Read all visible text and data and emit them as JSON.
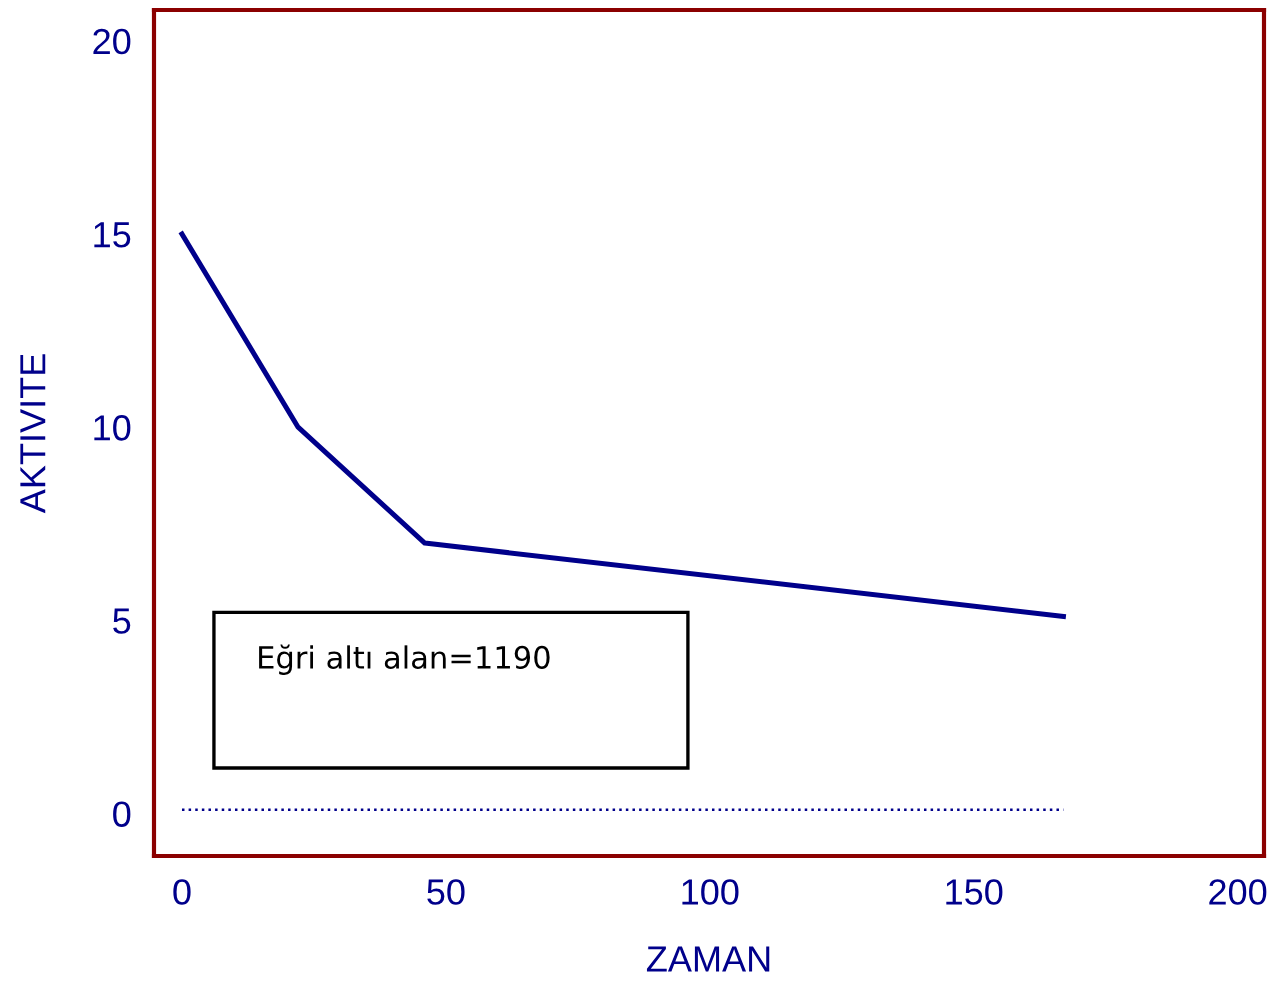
{
  "chart_data": {
    "type": "line",
    "xlabel": "ZAMAN",
    "ylabel": "AKTIVITE",
    "xlim": [
      -5.3,
      205
    ],
    "xticks": [
      0,
      50,
      100,
      150,
      200
    ],
    "ylim": [
      -1.1,
      20.8
    ],
    "yticks": [
      0,
      5,
      10,
      15,
      20
    ],
    "series": [
      {
        "color": "#00008b",
        "x": [
          0,
          22,
          46,
          167
        ],
        "values": [
          15,
          10,
          7,
          5.1
        ],
        "line_style": "solid"
      },
      {
        "color": "#00008b",
        "x": [
          0,
          167
        ],
        "values": [
          0.1,
          0.1
        ],
        "line_style": "dotted"
      }
    ],
    "annotations": [
      "Eğri altı alan=1190"
    ],
    "grid": false,
    "legend": false,
    "marker": "none"
  }
}
